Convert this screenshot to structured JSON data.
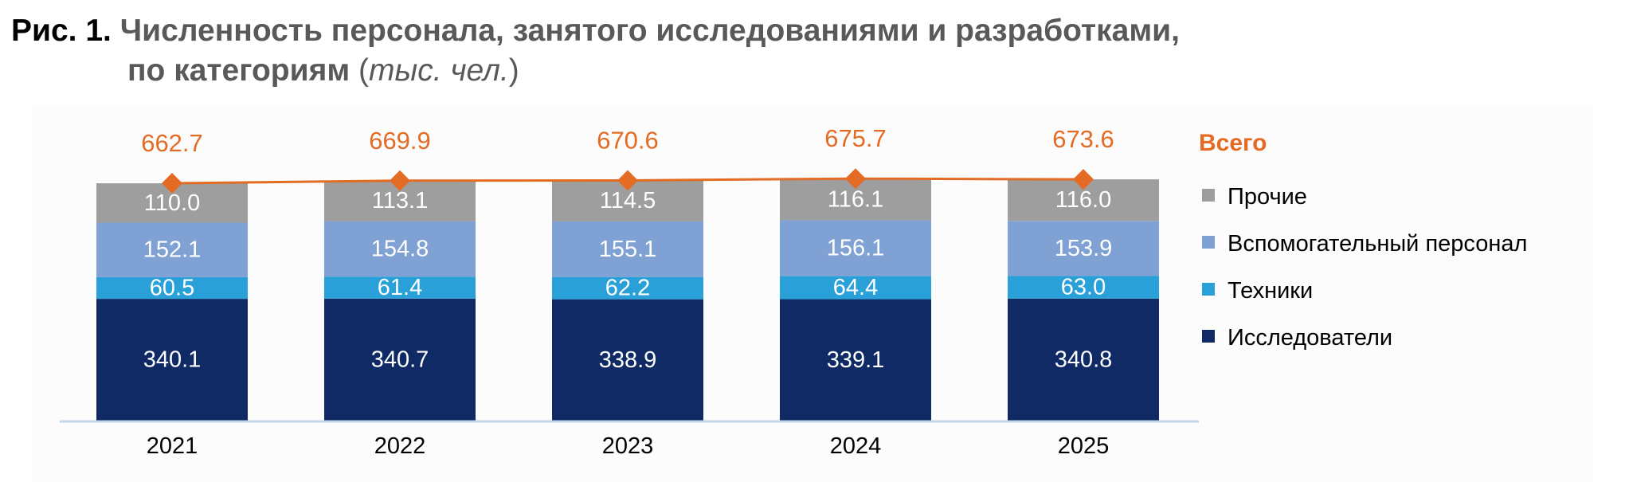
{
  "title": {
    "figure_label": "Рис. 1.",
    "line1": "Численность персонала, занятого исследованиями и разработками,",
    "line2": "по категориям",
    "unit_open": "(",
    "unit": "тыс. чел.",
    "unit_close": ")"
  },
  "chart_data": {
    "type": "bar",
    "stacked": true,
    "categories": [
      "2021",
      "2022",
      "2023",
      "2024",
      "2025"
    ],
    "series": [
      {
        "name": "Исследователи",
        "values": [
          340.1,
          340.7,
          338.9,
          339.1,
          340.8
        ],
        "color": "#102a66"
      },
      {
        "name": "Техники",
        "values": [
          60.5,
          61.4,
          62.2,
          64.4,
          63.0
        ],
        "color": "#2aa0d8"
      },
      {
        "name": "Вспомогательный персонал",
        "values": [
          152.1,
          154.8,
          155.1,
          156.1,
          153.9
        ],
        "color": "#7fa1d3"
      },
      {
        "name": "Прочие",
        "values": [
          110.0,
          113.1,
          114.5,
          116.1,
          116.0
        ],
        "color": "#9e9e9e"
      }
    ],
    "total": {
      "name": "Всего",
      "type": "line",
      "values": [
        662.7,
        669.9,
        670.6,
        675.7,
        673.6
      ],
      "color": "#e46b24"
    },
    "legend": {
      "position": "right",
      "order": [
        "Всего",
        "Прочие",
        "Вспомогательный персонал",
        "Техники",
        "Исследователи"
      ]
    },
    "grid": false,
    "xlabel": "",
    "ylabel": ""
  }
}
